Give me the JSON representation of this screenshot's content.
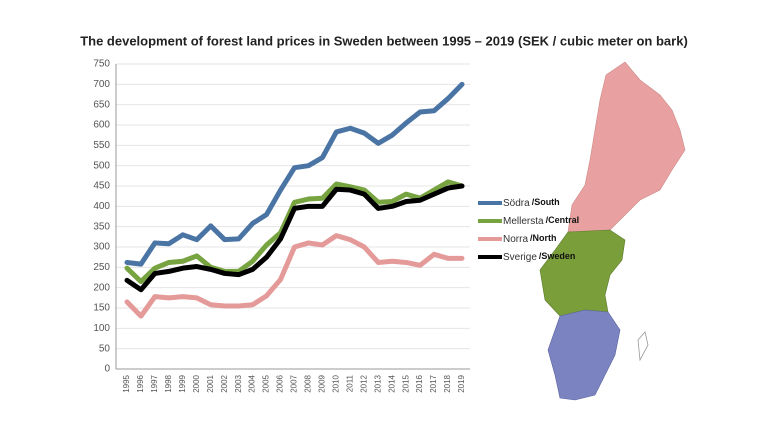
{
  "chart_data": {
    "type": "line",
    "title": "The development of forest land prices in Sweden between 1995 – 2019 (SEK / cubic meter on bark)",
    "categories": [
      "1995",
      "1996",
      "1997",
      "1998",
      "1999",
      "2000",
      "2001",
      "2002",
      "2003",
      "2004",
      "2005",
      "2006",
      "2007",
      "2008",
      "2009",
      "2010",
      "2011",
      "2012",
      "2013",
      "2014",
      "2015",
      "2016",
      "2017",
      "2018",
      "2019"
    ],
    "ylim": [
      0,
      750
    ],
    "yticks": [
      0,
      50,
      100,
      150,
      200,
      250,
      300,
      350,
      400,
      450,
      500,
      550,
      600,
      650,
      700,
      750
    ],
    "grid": true,
    "series": [
      {
        "name": "Södra",
        "name_en": "/South",
        "color": "#4a74a4",
        "values": [
          262,
          258,
          310,
          308,
          330,
          318,
          352,
          318,
          320,
          358,
          380,
          440,
          495,
          500,
          520,
          583,
          592,
          580,
          555,
          575,
          605,
          632,
          635,
          665,
          700
        ]
      },
      {
        "name": "Mellersta",
        "name_en": "/Central",
        "color": "#78a341",
        "values": [
          248,
          215,
          248,
          262,
          265,
          278,
          250,
          240,
          240,
          265,
          305,
          335,
          410,
          418,
          420,
          455,
          448,
          440,
          410,
          412,
          430,
          420,
          440,
          460,
          450
        ]
      },
      {
        "name": "Norra",
        "name_en": "/North",
        "color": "#e59a9a",
        "values": [
          165,
          130,
          178,
          175,
          178,
          175,
          158,
          155,
          155,
          158,
          180,
          220,
          300,
          310,
          305,
          328,
          318,
          300,
          262,
          265,
          262,
          255,
          282,
          272,
          272
        ]
      },
      {
        "name": "Sverige",
        "name_en": "/Sweden",
        "color": "#000000",
        "values": [
          218,
          195,
          235,
          240,
          248,
          252,
          245,
          235,
          232,
          245,
          275,
          320,
          395,
          400,
          400,
          442,
          440,
          430,
          395,
          400,
          412,
          415,
          430,
          445,
          450
        ]
      }
    ]
  }
}
